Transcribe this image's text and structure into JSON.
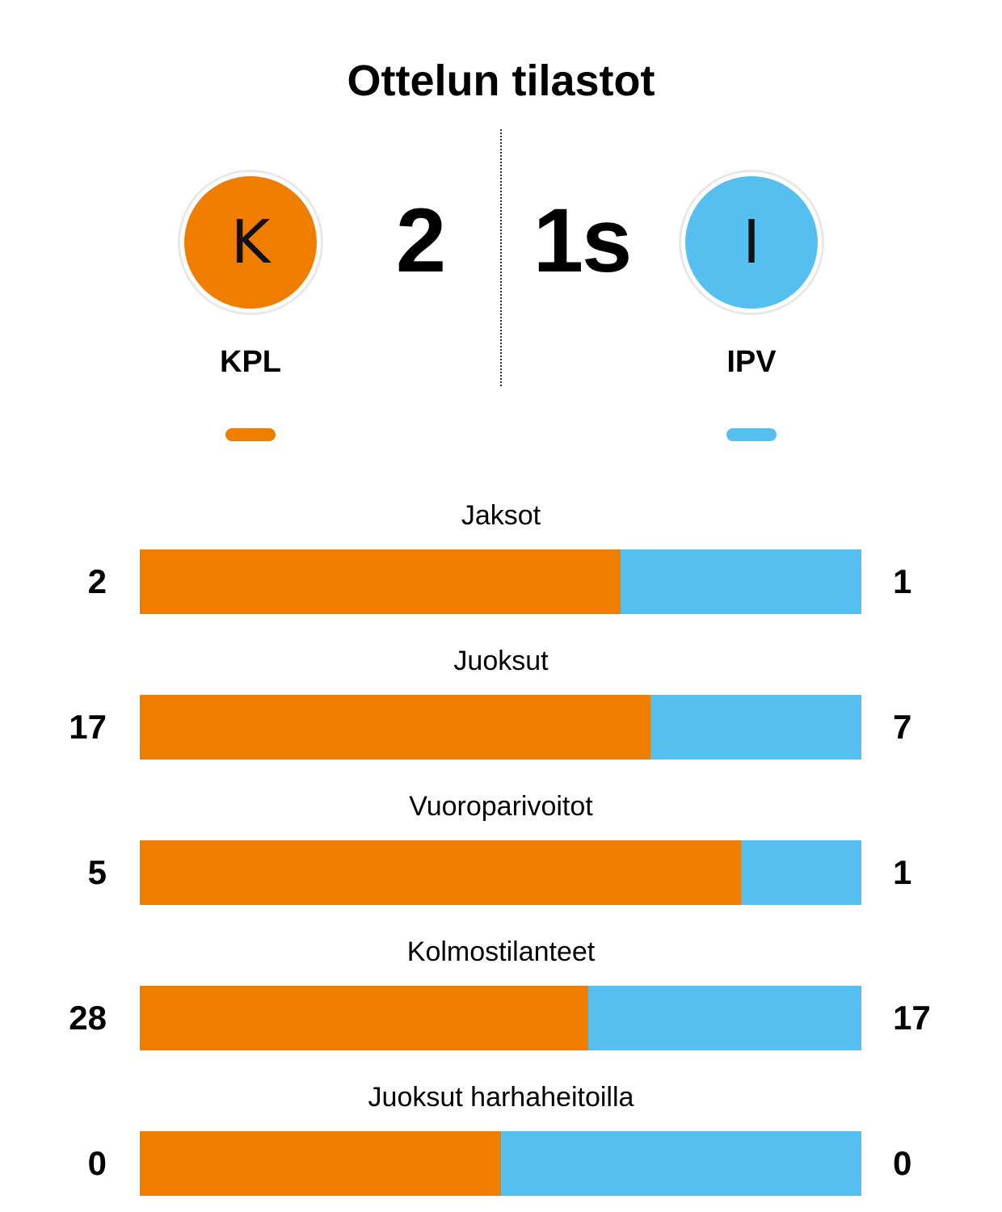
{
  "title": "Ottelun tilastot",
  "colors": {
    "home": "#ef7d00",
    "away": "#55c0ef"
  },
  "home": {
    "logo_letter": "K",
    "name": "KPL",
    "score": "2"
  },
  "away": {
    "logo_letter": "I",
    "name": "IPV",
    "score": "1s"
  },
  "stats": [
    {
      "label": "Jaksot",
      "home": "2",
      "away": "1",
      "home_share": 0.666
    },
    {
      "label": "Juoksut",
      "home": "17",
      "away": "7",
      "home_share": 0.708
    },
    {
      "label": "Vuoroparivoitot",
      "home": "5",
      "away": "1",
      "home_share": 0.833
    },
    {
      "label": "Kolmostilanteet",
      "home": "28",
      "away": "17",
      "home_share": 0.622
    },
    {
      "label": "Juoksut harhaheitoilla",
      "home": "0",
      "away": "0",
      "home_share": 0.5
    }
  ]
}
